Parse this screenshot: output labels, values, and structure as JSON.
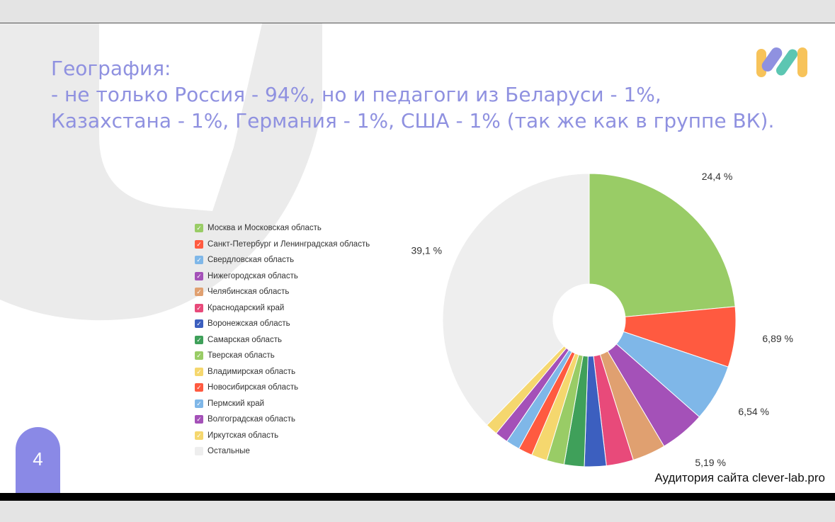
{
  "slide": {
    "title_lines": [
      "География:",
      "- не только Россия - 94%, но и педагоги из Беларуси - 1%,",
      "Казахстана - 1%, Германия - 1%, США - 1% (так же как в группе ВК)."
    ],
    "page_number": "4",
    "caption": "Аудитория сайта clever-lab.pro",
    "colors": {
      "title": "#8f91e0",
      "badge": "#8a89e6"
    }
  },
  "legend": [
    {
      "label": "Москва и Московская область",
      "color": "#99cc66",
      "checked": true
    },
    {
      "label": "Санкт-Петербург и Ленинградская область",
      "color": "#ff5a40",
      "checked": true
    },
    {
      "label": "Свердловская область",
      "color": "#7fb7e8",
      "checked": true
    },
    {
      "label": "Нижегородская область",
      "color": "#a451b8",
      "checked": true
    },
    {
      "label": "Челябинская область",
      "color": "#e0a070",
      "checked": true
    },
    {
      "label": "Краснодарский край",
      "color": "#e84a7a",
      "checked": true
    },
    {
      "label": "Воронежская область",
      "color": "#3c5fbf",
      "checked": true
    },
    {
      "label": "Самарская область",
      "color": "#3fa05a",
      "checked": true
    },
    {
      "label": "Тверская область",
      "color": "#99cc66",
      "checked": true
    },
    {
      "label": "Владимирская область",
      "color": "#f5d76e",
      "checked": true
    },
    {
      "label": "Новосибирская область",
      "color": "#ff5a40",
      "checked": true
    },
    {
      "label": "Пермский край",
      "color": "#7fb7e8",
      "checked": true
    },
    {
      "label": "Волгоградская область",
      "color": "#a451b8",
      "checked": true
    },
    {
      "label": "Иркутская область",
      "color": "#f5d76e",
      "checked": true
    },
    {
      "label": "Остальные",
      "color": "#eeeeee",
      "checked": false
    }
  ],
  "chart_data": {
    "type": "pie",
    "donut": true,
    "categories": [
      "Москва и Московская область",
      "Санкт-Петербург и Ленинградская область",
      "Свердловская область",
      "Нижегородская область",
      "Челябинская область",
      "Краснодарский край",
      "Воронежская область",
      "Самарская область",
      "Тверская область",
      "Владимирская область",
      "Новосибирская область",
      "Пермский край",
      "Волгоградская область",
      "Иркутская область",
      "Остальные"
    ],
    "values": [
      24.4,
      6.89,
      6.54,
      5.19,
      3.8,
      3.1,
      2.5,
      2.3,
      2.0,
      1.8,
      1.6,
      1.6,
      1.5,
      1.4,
      39.1
    ],
    "colors": [
      "#99cc66",
      "#ff5a40",
      "#7fb7e8",
      "#a451b8",
      "#e0a070",
      "#e84a7a",
      "#3c5fbf",
      "#3fa05a",
      "#99cc66",
      "#f5d76e",
      "#ff5a40",
      "#7fb7e8",
      "#a451b8",
      "#f5d76e",
      "#eeeeee"
    ],
    "data_labels": [
      {
        "index": 0,
        "text": "24,4 %"
      },
      {
        "index": 1,
        "text": "6,89 %"
      },
      {
        "index": 2,
        "text": "6,54 %"
      },
      {
        "index": 3,
        "text": "5,19 %"
      },
      {
        "index": 14,
        "text": "39,1 %"
      }
    ],
    "legend_placement": "left"
  }
}
